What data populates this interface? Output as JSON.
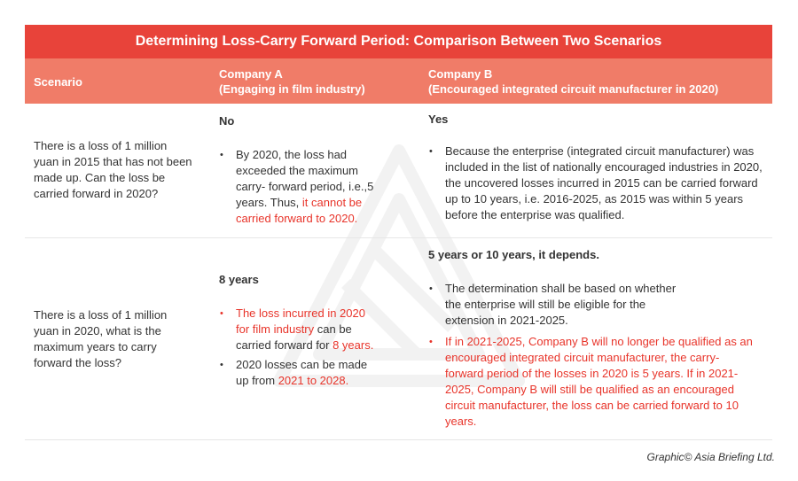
{
  "title": "Determining Loss-Carry Forward Period: Comparison Between Two Scenarios",
  "header": {
    "col_scenario": "Scenario",
    "col_a_line1": "Company A",
    "col_a_line2": "(Engaging in film industry)",
    "col_b_line1": "Company B",
    "col_b_line2": "(Encouraged integrated circuit manufacturer in  2020)"
  },
  "row1": {
    "scenario": "There is a loss of 1 million yuan in 2015 that has not been made up. Can the loss be carried forward in 2020?",
    "a_answer": "No",
    "a_bullet1_plain": "By 2020, the loss had exceeded the maximum carry- forward period, i.e.,5 years. Thus, ",
    "a_bullet1_red": "it cannot be carried forward to 2020.",
    "b_answer": "Yes",
    "b_bullet1": "Because the enterprise (integrated circuit manufacturer) was included in the list of nationally encouraged industries in 2020, the uncovered losses incurred in 2015 can be carried forward up to 10 years, i.e. 2016-2025, as 2015 was within 5 years before the enterprise was qualified."
  },
  "row2": {
    "scenario": "There is a loss of 1 million yuan in 2020, what is the maximum years to carry forward the loss?",
    "a_answer": "8 years",
    "a_bullet1_red": "The loss incurred in 2020 for film industry",
    "a_bullet1_plain": " can be carried forward for ",
    "a_bullet1_red2": "8 years.",
    "a_bullet2_plain": "2020 losses can be made up from ",
    "a_bullet2_red": "2021 to 2028.",
    "b_answer": "5 years or 10 years, it depends.",
    "b_bullet1": "The determination shall be based on whether the enterprise will still be eligible for the extension in 2021-2025.",
    "b_bullet2": "If in 2021-2025, Company B will no longer be qualified as an encouraged integrated circuit manufacturer, the carry-forward period of the losses in 2020 is 5 years. If in 2021-2025, Company B will still be qualified as an encouraged circuit manufacturer, the loss can be carried forward to 10 years."
  },
  "footer": "Graphic© Asia Briefing Ltd.",
  "colors": {
    "title_bg": "#e8433a",
    "header_bg": "#f07c68",
    "accent_red": "#e8342a",
    "text": "#333333"
  }
}
